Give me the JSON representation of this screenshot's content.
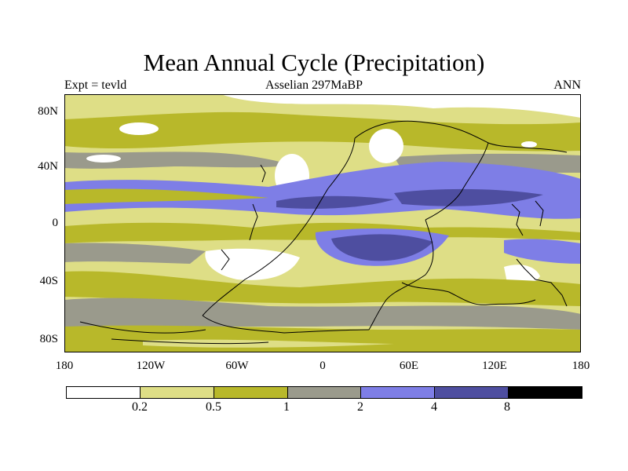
{
  "title": "Mean Annual Cycle (Precipitation)",
  "subtitle_left": "Expt = tevld",
  "subtitle_center": "Asselian 297MaBP",
  "subtitle_right": "ANN",
  "colors": {
    "c0": "#ffffff",
    "c1": "#dede86",
    "c2": "#b8b82a",
    "c3": "#9a9a8c",
    "c4": "#7e7ee6",
    "c5": "#4e4ea0",
    "c6": "#000000"
  },
  "lat_labels": [
    "80N",
    "40N",
    "0",
    "40S",
    "80S"
  ],
  "lon_labels": [
    "180",
    "120W",
    "60W",
    "0",
    "60E",
    "120E",
    "180"
  ],
  "colorbar": {
    "levels": [
      "0.2",
      "0.5",
      "1",
      "2",
      "4",
      "8"
    ],
    "colors": [
      "#ffffff",
      "#dede86",
      "#b8b82a",
      "#9a9a8c",
      "#7e7ee6",
      "#4e4ea0",
      "#000000"
    ]
  }
}
